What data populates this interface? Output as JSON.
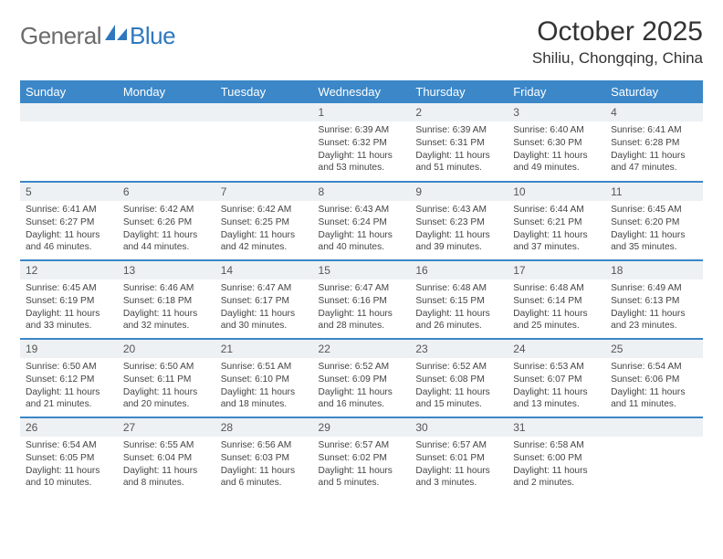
{
  "logo": {
    "part_a": "General",
    "part_b": "Blue"
  },
  "title": "October 2025",
  "location": "Shiliu, Chongqing, China",
  "colors": {
    "header_bg": "#3b87c8",
    "header_text": "#ffffff",
    "daynum_bg": "#eef1f3",
    "daynum_text": "#555555",
    "body_text": "#444444",
    "row_border": "#3b87c8",
    "logo_gray": "#6b6b6b",
    "logo_blue": "#2f78bd"
  },
  "day_headers": [
    "Sunday",
    "Monday",
    "Tuesday",
    "Wednesday",
    "Thursday",
    "Friday",
    "Saturday"
  ],
  "weeks": [
    [
      {
        "num": "",
        "sunrise": "",
        "sunset": "",
        "daylight": ""
      },
      {
        "num": "",
        "sunrise": "",
        "sunset": "",
        "daylight": ""
      },
      {
        "num": "",
        "sunrise": "",
        "sunset": "",
        "daylight": ""
      },
      {
        "num": "1",
        "sunrise": "Sunrise: 6:39 AM",
        "sunset": "Sunset: 6:32 PM",
        "daylight": "Daylight: 11 hours and 53 minutes."
      },
      {
        "num": "2",
        "sunrise": "Sunrise: 6:39 AM",
        "sunset": "Sunset: 6:31 PM",
        "daylight": "Daylight: 11 hours and 51 minutes."
      },
      {
        "num": "3",
        "sunrise": "Sunrise: 6:40 AM",
        "sunset": "Sunset: 6:30 PM",
        "daylight": "Daylight: 11 hours and 49 minutes."
      },
      {
        "num": "4",
        "sunrise": "Sunrise: 6:41 AM",
        "sunset": "Sunset: 6:28 PM",
        "daylight": "Daylight: 11 hours and 47 minutes."
      }
    ],
    [
      {
        "num": "5",
        "sunrise": "Sunrise: 6:41 AM",
        "sunset": "Sunset: 6:27 PM",
        "daylight": "Daylight: 11 hours and 46 minutes."
      },
      {
        "num": "6",
        "sunrise": "Sunrise: 6:42 AM",
        "sunset": "Sunset: 6:26 PM",
        "daylight": "Daylight: 11 hours and 44 minutes."
      },
      {
        "num": "7",
        "sunrise": "Sunrise: 6:42 AM",
        "sunset": "Sunset: 6:25 PM",
        "daylight": "Daylight: 11 hours and 42 minutes."
      },
      {
        "num": "8",
        "sunrise": "Sunrise: 6:43 AM",
        "sunset": "Sunset: 6:24 PM",
        "daylight": "Daylight: 11 hours and 40 minutes."
      },
      {
        "num": "9",
        "sunrise": "Sunrise: 6:43 AM",
        "sunset": "Sunset: 6:23 PM",
        "daylight": "Daylight: 11 hours and 39 minutes."
      },
      {
        "num": "10",
        "sunrise": "Sunrise: 6:44 AM",
        "sunset": "Sunset: 6:21 PM",
        "daylight": "Daylight: 11 hours and 37 minutes."
      },
      {
        "num": "11",
        "sunrise": "Sunrise: 6:45 AM",
        "sunset": "Sunset: 6:20 PM",
        "daylight": "Daylight: 11 hours and 35 minutes."
      }
    ],
    [
      {
        "num": "12",
        "sunrise": "Sunrise: 6:45 AM",
        "sunset": "Sunset: 6:19 PM",
        "daylight": "Daylight: 11 hours and 33 minutes."
      },
      {
        "num": "13",
        "sunrise": "Sunrise: 6:46 AM",
        "sunset": "Sunset: 6:18 PM",
        "daylight": "Daylight: 11 hours and 32 minutes."
      },
      {
        "num": "14",
        "sunrise": "Sunrise: 6:47 AM",
        "sunset": "Sunset: 6:17 PM",
        "daylight": "Daylight: 11 hours and 30 minutes."
      },
      {
        "num": "15",
        "sunrise": "Sunrise: 6:47 AM",
        "sunset": "Sunset: 6:16 PM",
        "daylight": "Daylight: 11 hours and 28 minutes."
      },
      {
        "num": "16",
        "sunrise": "Sunrise: 6:48 AM",
        "sunset": "Sunset: 6:15 PM",
        "daylight": "Daylight: 11 hours and 26 minutes."
      },
      {
        "num": "17",
        "sunrise": "Sunrise: 6:48 AM",
        "sunset": "Sunset: 6:14 PM",
        "daylight": "Daylight: 11 hours and 25 minutes."
      },
      {
        "num": "18",
        "sunrise": "Sunrise: 6:49 AM",
        "sunset": "Sunset: 6:13 PM",
        "daylight": "Daylight: 11 hours and 23 minutes."
      }
    ],
    [
      {
        "num": "19",
        "sunrise": "Sunrise: 6:50 AM",
        "sunset": "Sunset: 6:12 PM",
        "daylight": "Daylight: 11 hours and 21 minutes."
      },
      {
        "num": "20",
        "sunrise": "Sunrise: 6:50 AM",
        "sunset": "Sunset: 6:11 PM",
        "daylight": "Daylight: 11 hours and 20 minutes."
      },
      {
        "num": "21",
        "sunrise": "Sunrise: 6:51 AM",
        "sunset": "Sunset: 6:10 PM",
        "daylight": "Daylight: 11 hours and 18 minutes."
      },
      {
        "num": "22",
        "sunrise": "Sunrise: 6:52 AM",
        "sunset": "Sunset: 6:09 PM",
        "daylight": "Daylight: 11 hours and 16 minutes."
      },
      {
        "num": "23",
        "sunrise": "Sunrise: 6:52 AM",
        "sunset": "Sunset: 6:08 PM",
        "daylight": "Daylight: 11 hours and 15 minutes."
      },
      {
        "num": "24",
        "sunrise": "Sunrise: 6:53 AM",
        "sunset": "Sunset: 6:07 PM",
        "daylight": "Daylight: 11 hours and 13 minutes."
      },
      {
        "num": "25",
        "sunrise": "Sunrise: 6:54 AM",
        "sunset": "Sunset: 6:06 PM",
        "daylight": "Daylight: 11 hours and 11 minutes."
      }
    ],
    [
      {
        "num": "26",
        "sunrise": "Sunrise: 6:54 AM",
        "sunset": "Sunset: 6:05 PM",
        "daylight": "Daylight: 11 hours and 10 minutes."
      },
      {
        "num": "27",
        "sunrise": "Sunrise: 6:55 AM",
        "sunset": "Sunset: 6:04 PM",
        "daylight": "Daylight: 11 hours and 8 minutes."
      },
      {
        "num": "28",
        "sunrise": "Sunrise: 6:56 AM",
        "sunset": "Sunset: 6:03 PM",
        "daylight": "Daylight: 11 hours and 6 minutes."
      },
      {
        "num": "29",
        "sunrise": "Sunrise: 6:57 AM",
        "sunset": "Sunset: 6:02 PM",
        "daylight": "Daylight: 11 hours and 5 minutes."
      },
      {
        "num": "30",
        "sunrise": "Sunrise: 6:57 AM",
        "sunset": "Sunset: 6:01 PM",
        "daylight": "Daylight: 11 hours and 3 minutes."
      },
      {
        "num": "31",
        "sunrise": "Sunrise: 6:58 AM",
        "sunset": "Sunset: 6:00 PM",
        "daylight": "Daylight: 11 hours and 2 minutes."
      },
      {
        "num": "",
        "sunrise": "",
        "sunset": "",
        "daylight": ""
      }
    ]
  ]
}
